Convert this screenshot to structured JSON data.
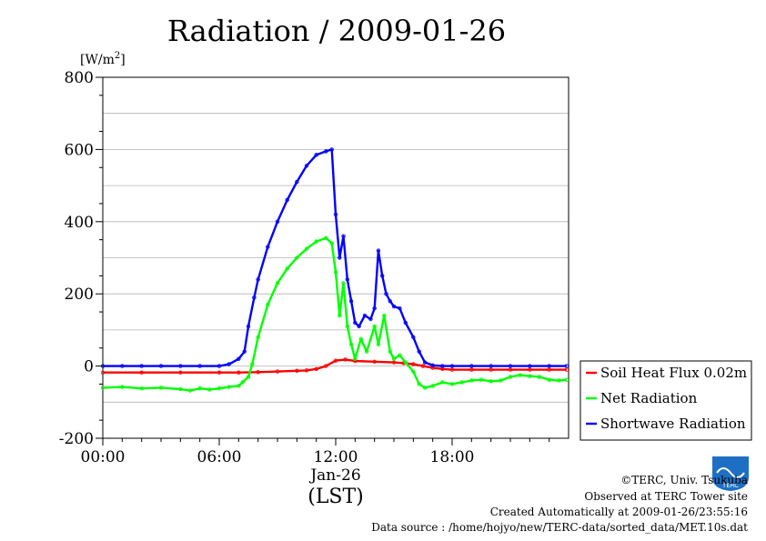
{
  "chart_data": {
    "type": "line",
    "title": "Radiation / 2009-01-26",
    "ylabel_unit": "[W/m",
    "ylabel_unit_sup": "2",
    "ylabel_unit_close": "]",
    "xlabel": "(LST)",
    "date_label": "Jan-26",
    "ylim": [
      -200,
      800
    ],
    "xlim_hours": [
      0,
      24
    ],
    "y_ticks": [
      "800",
      "600",
      "400",
      "200",
      "0",
      "-200"
    ],
    "y_tick_values": [
      800,
      600,
      400,
      200,
      0,
      -200
    ],
    "x_ticks": [
      "00:00",
      "06:00",
      "12:00",
      "18:00"
    ],
    "x_tick_values": [
      0,
      6,
      12,
      18
    ],
    "grid": true,
    "legend_position": "right",
    "series": [
      {
        "name": "Soil Heat Flux 0.02m",
        "color": "#ff0000",
        "x": [
          0,
          2,
          4,
          6,
          7,
          8,
          9,
          10,
          10.5,
          11,
          11.5,
          12,
          12.5,
          13,
          14,
          15,
          15.5,
          16,
          16.5,
          17,
          17.5,
          18,
          19,
          20,
          21,
          22,
          23,
          23.9
        ],
        "y": [
          -18,
          -18,
          -18,
          -18,
          -18,
          -17,
          -15,
          -13,
          -12,
          -8,
          0,
          15,
          18,
          14,
          12,
          10,
          8,
          5,
          0,
          -5,
          -8,
          -10,
          -10,
          -10,
          -10,
          -10,
          -10,
          -10
        ]
      },
      {
        "name": "Net Radiation",
        "color": "#00ff00",
        "x": [
          0,
          1,
          2,
          3,
          4,
          4.5,
          5,
          5.5,
          6,
          6.5,
          7,
          7.2,
          7.5,
          7.7,
          8,
          8.5,
          9,
          9.5,
          10,
          10.5,
          11,
          11.5,
          11.8,
          12,
          12.2,
          12.4,
          12.6,
          12.8,
          13,
          13.3,
          13.6,
          14,
          14.2,
          14.5,
          14.8,
          15,
          15.3,
          15.6,
          16,
          16.3,
          16.6,
          17,
          17.5,
          18,
          18.5,
          19,
          19.5,
          20,
          20.5,
          21,
          21.5,
          22,
          22.5,
          23,
          23.5,
          23.9
        ],
        "y": [
          -60,
          -58,
          -62,
          -60,
          -64,
          -68,
          -62,
          -65,
          -62,
          -58,
          -55,
          -45,
          -30,
          5,
          80,
          170,
          230,
          270,
          300,
          325,
          345,
          355,
          340,
          260,
          140,
          230,
          110,
          60,
          20,
          75,
          40,
          110,
          60,
          140,
          40,
          20,
          30,
          10,
          -15,
          -50,
          -60,
          -55,
          -45,
          -50,
          -45,
          -40,
          -38,
          -42,
          -40,
          -30,
          -25,
          -28,
          -30,
          -38,
          -40,
          -38
        ]
      },
      {
        "name": "Shortwave Radiation",
        "color": "#0000ff",
        "x": [
          0,
          1,
          2,
          3,
          4,
          5,
          6,
          6.5,
          7,
          7.3,
          7.5,
          7.8,
          8,
          8.5,
          9,
          9.5,
          10,
          10.5,
          11,
          11.5,
          11.8,
          12,
          12.2,
          12.4,
          12.6,
          12.8,
          13,
          13.2,
          13.5,
          13.8,
          14,
          14.2,
          14.4,
          14.6,
          14.8,
          15,
          15.3,
          15.6,
          16,
          16.3,
          16.6,
          17,
          17.5,
          18,
          19,
          20,
          21,
          22,
          23,
          23.9
        ],
        "y": [
          0,
          0,
          0,
          0,
          0,
          0,
          0,
          5,
          20,
          40,
          110,
          190,
          240,
          330,
          400,
          460,
          510,
          555,
          585,
          595,
          600,
          420,
          300,
          360,
          240,
          180,
          120,
          110,
          140,
          130,
          160,
          320,
          250,
          200,
          180,
          165,
          160,
          120,
          80,
          40,
          10,
          2,
          0,
          0,
          0,
          0,
          0,
          0,
          0,
          0
        ]
      }
    ]
  },
  "credits": {
    "copyright": "©TERC, Univ. Tsukuba",
    "site": "Observed at TERC Tower site",
    "created": "Created Automatically at 2009-01-26/23:55:16",
    "source": "Data source : /home/hojyo/new/TERC-data/sorted_data/MET.10s.dat"
  },
  "logo": {
    "text": "TERC",
    "color": "#1e6fc4"
  }
}
